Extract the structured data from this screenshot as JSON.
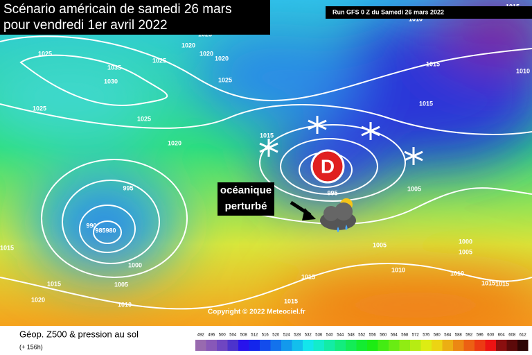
{
  "header": {
    "title_line1": "Scénario américain de samedi 26 mars",
    "title_line2": "pour vendredi 1er avril 2022"
  },
  "run_info": "Run GFS 0 Z du Samedi 26 mars 2022",
  "annotation": {
    "line1": "océanique",
    "line2": "perturbé"
  },
  "low_marker": "D",
  "copyright": "Copyright © 2022 Meteociel.fr",
  "legend": {
    "title": "Géop. Z500 & pression au sol",
    "subtitle": "(+ 156h)",
    "scale": [
      492,
      496,
      500,
      504,
      508,
      512,
      516,
      520,
      524,
      528,
      532,
      536,
      540,
      544,
      548,
      552,
      556,
      560,
      564,
      568,
      572,
      576,
      580,
      584,
      588,
      592,
      596,
      600,
      604,
      608,
      612
    ]
  },
  "isobar_labels": [
    "1025",
    "1020",
    "1025",
    "1020",
    "1035",
    "1025",
    "1020",
    "1030",
    "1025",
    "1025",
    "1025",
    "1020",
    "1015",
    "995",
    "990",
    "985",
    "980",
    "1000",
    "1005",
    "1010",
    "1015",
    "1015",
    "1020",
    "995",
    "1005",
    "1005",
    "1010",
    "1015",
    "1015",
    "1000",
    "1005",
    "1010",
    "1015",
    "1015",
    "1015",
    "1015",
    "1010",
    "1015",
    "1010"
  ]
}
